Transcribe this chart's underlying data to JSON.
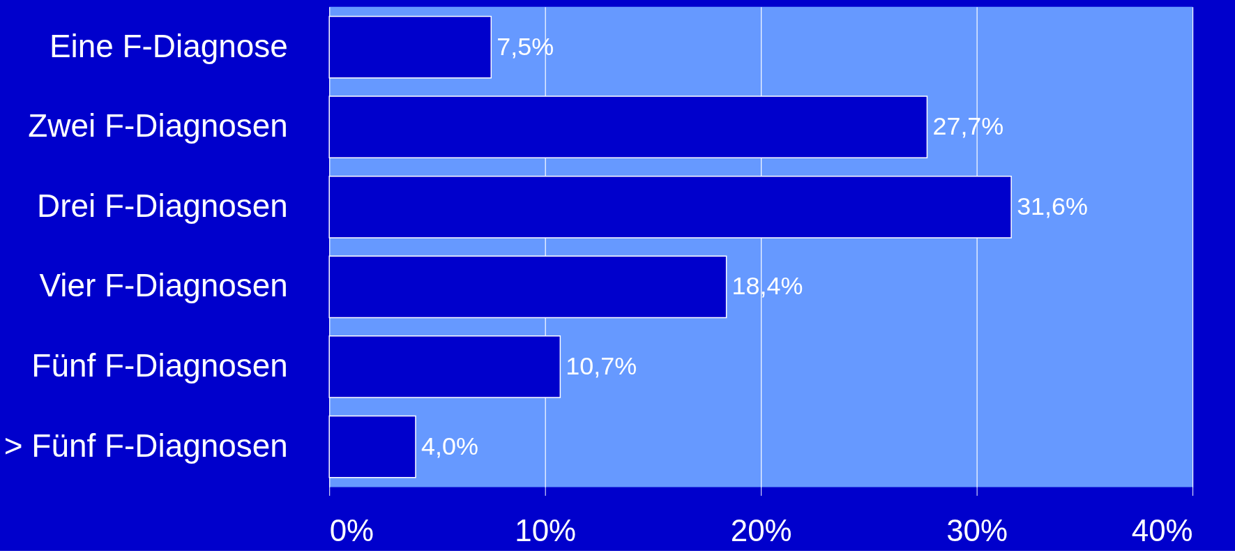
{
  "chart_data": {
    "type": "bar",
    "orientation": "horizontal",
    "categories": [
      "Eine F-Diagnose",
      "Zwei F-Diagnosen",
      "Drei F-Diagnosen",
      "Vier F-Diagnosen",
      "Fünf F-Diagnosen",
      "> Fünf F-Diagnosen"
    ],
    "values": [
      7.5,
      27.7,
      31.6,
      18.4,
      10.7,
      4.0
    ],
    "value_labels": [
      "7,5%",
      "27,7%",
      "31,6%",
      "18,4%",
      "10,7%",
      "4,0%"
    ],
    "color": "#0000cc",
    "xlim": [
      0,
      40
    ],
    "xticks": [
      {
        "value": 0,
        "label": "0%"
      },
      {
        "value": 10,
        "label": "10%"
      },
      {
        "value": 20,
        "label": "20%"
      },
      {
        "value": 30,
        "label": "30%"
      },
      {
        "value": 40,
        "label": "40%"
      }
    ],
    "grid": "x"
  }
}
